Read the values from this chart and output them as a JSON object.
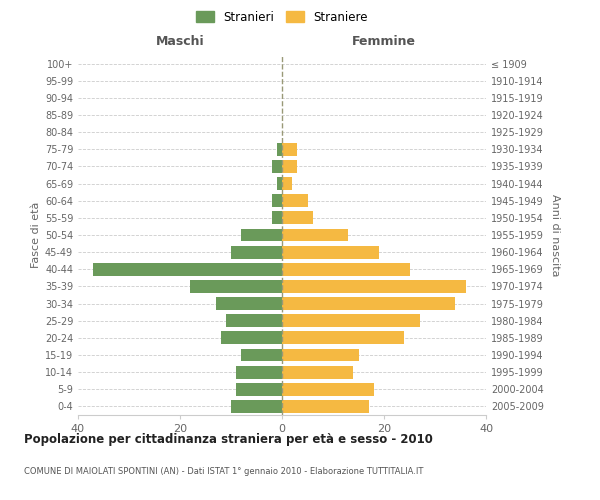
{
  "age_groups": [
    "0-4",
    "5-9",
    "10-14",
    "15-19",
    "20-24",
    "25-29",
    "30-34",
    "35-39",
    "40-44",
    "45-49",
    "50-54",
    "55-59",
    "60-64",
    "65-69",
    "70-74",
    "75-79",
    "80-84",
    "85-89",
    "90-94",
    "95-99",
    "100+"
  ],
  "birth_years": [
    "2005-2009",
    "2000-2004",
    "1995-1999",
    "1990-1994",
    "1985-1989",
    "1980-1984",
    "1975-1979",
    "1970-1974",
    "1965-1969",
    "1960-1964",
    "1955-1959",
    "1950-1954",
    "1945-1949",
    "1940-1944",
    "1935-1939",
    "1930-1934",
    "1925-1929",
    "1920-1924",
    "1915-1919",
    "1910-1914",
    "≤ 1909"
  ],
  "maschi": [
    10,
    9,
    9,
    8,
    12,
    11,
    13,
    18,
    37,
    10,
    8,
    2,
    2,
    1,
    2,
    1,
    0,
    0,
    0,
    0,
    0
  ],
  "femmine": [
    17,
    18,
    14,
    15,
    24,
    27,
    34,
    36,
    25,
    19,
    13,
    6,
    5,
    2,
    3,
    3,
    0,
    0,
    0,
    0,
    0
  ],
  "color_maschi": "#6a9a5a",
  "color_femmine": "#f5b942",
  "title": "Popolazione per cittadinanza straniera per età e sesso - 2010",
  "subtitle": "COMUNE DI MAIOLATI SPONTINI (AN) - Dati ISTAT 1° gennaio 2010 - Elaborazione TUTTITALIA.IT",
  "xlabel_left": "Maschi",
  "xlabel_right": "Femmine",
  "ylabel_left": "Fasce di età",
  "ylabel_right": "Anni di nascita",
  "legend_maschi": "Stranieri",
  "legend_femmine": "Straniere",
  "xlim": 40,
  "background_color": "#ffffff",
  "grid_color": "#cccccc",
  "bar_height": 0.75
}
